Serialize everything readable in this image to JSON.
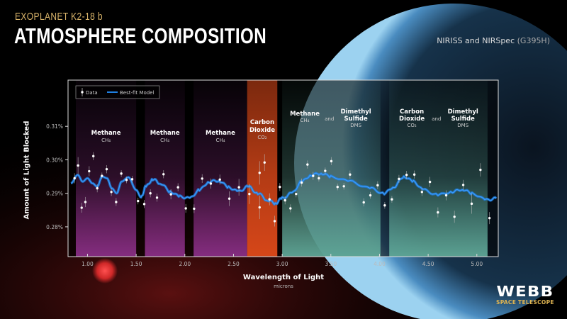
{
  "header": {
    "kicker": "EXOPLANET K2-18 b",
    "title": "ATMOSPHERE COMPOSITION",
    "instrument": "NIRISS and NIRSpec",
    "instrument_mode": "(G395H)"
  },
  "logo": {
    "name": "WEBB",
    "subtitle": "SPACE TELESCOPE"
  },
  "colors": {
    "model": "#1f7fe0",
    "data": "#ffffff",
    "methane_band": "#8a2f86",
    "co2_band": "#e04a1a",
    "dms_band": "#5fa898",
    "title_accent": "#d9b46a"
  },
  "chart_data": {
    "type": "scatter",
    "xlabel": "Wavelength of Light",
    "xunit": "microns",
    "ylabel": "Amount of Light Blocked",
    "xlim": [
      0.8,
      5.22
    ],
    "ylim": [
      0.2711,
      0.3238
    ],
    "xticks": [
      "1.00",
      "1.50",
      "2.00",
      "2.50",
      "3.00",
      "3.50",
      "4.00",
      "4.50",
      "5.00"
    ],
    "xtick_values": [
      1.0,
      1.5,
      2.0,
      2.5,
      3.0,
      3.5,
      4.0,
      4.5,
      5.0
    ],
    "yticks": [
      "0.28%",
      "0.29%",
      "0.30%",
      "0.31%"
    ],
    "ytick_values": [
      0.28,
      0.29,
      0.3,
      0.31
    ],
    "grid": false,
    "legend": {
      "position": "top-left",
      "entries": [
        "Data",
        "Best-fit Model"
      ]
    },
    "bands": [
      {
        "type": "methane",
        "x": [
          0.88,
          1.5
        ],
        "labels": [
          {
            "name": "Methane",
            "formula": "CH₄"
          }
        ]
      },
      {
        "type": "methane",
        "x": [
          1.59,
          2.0
        ],
        "labels": [
          {
            "name": "Methane",
            "formula": "CH₄"
          }
        ]
      },
      {
        "type": "methane",
        "x": [
          2.09,
          2.64
        ],
        "labels": [
          {
            "name": "Methane",
            "formula": "CH₄"
          }
        ]
      },
      {
        "type": "co2",
        "x": [
          2.64,
          2.95
        ],
        "labels": [
          {
            "name": "Carbon Dioxide",
            "formula": "CO₂"
          }
        ]
      },
      {
        "type": "dms",
        "x": [
          3.0,
          4.01
        ],
        "labels": [
          {
            "name": "Methane",
            "formula": "CH₄"
          },
          {
            "name": "Dimethyl Sulfide",
            "formula": "DMS"
          }
        ],
        "joiner": "and"
      },
      {
        "type": "dms",
        "x": [
          4.1,
          5.11
        ],
        "labels": [
          {
            "name": "Carbon Dioxide",
            "formula": "CO₂"
          },
          {
            "name": "Dimethyl Sulfide",
            "formula": "DMS"
          }
        ],
        "joiner": "and"
      }
    ],
    "series": [
      {
        "name": "Data",
        "type": "errorbar",
        "x": [
          0.867,
          0.903,
          0.94,
          0.978,
          1.017,
          1.06,
          1.1,
          1.148,
          1.197,
          1.245,
          1.294,
          1.347,
          1.401,
          1.459,
          1.519,
          1.583,
          1.646,
          1.714,
          1.781,
          1.857,
          1.93,
          2.01,
          2.095,
          2.178,
          2.267,
          2.36,
          2.457,
          2.556,
          2.663,
          2.768,
          2.768,
          2.819,
          2.87,
          2.923,
          2.976,
          3.03,
          3.085,
          3.143,
          3.2,
          3.26,
          3.318,
          3.377,
          3.442,
          3.505,
          3.569,
          3.634,
          3.697,
          3.838,
          3.906,
          3.981,
          4.054,
          4.127,
          4.2,
          4.278,
          4.358,
          4.436,
          4.518,
          4.6,
          4.685,
          4.77,
          4.86,
          4.947,
          5.037,
          5.13
        ],
        "y": [
          0.2945,
          0.2983,
          0.2857,
          0.2874,
          0.2966,
          0.3011,
          0.2915,
          0.2952,
          0.2972,
          0.2904,
          0.2874,
          0.2959,
          0.294,
          0.2942,
          0.2877,
          0.2868,
          0.29,
          0.2887,
          0.2957,
          0.2897,
          0.2918,
          0.2855,
          0.2854,
          0.2944,
          0.2929,
          0.2941,
          0.2884,
          0.2918,
          0.2898,
          0.2961,
          0.2858,
          0.2992,
          0.2882,
          0.2817,
          0.2919,
          0.2879,
          0.2855,
          0.2898,
          0.2932,
          0.2986,
          0.2952,
          0.2945,
          0.2967,
          0.2996,
          0.2919,
          0.2921,
          0.2956,
          0.2873,
          0.2894,
          0.2924,
          0.2864,
          0.2882,
          0.2943,
          0.2955,
          0.2956,
          0.2904,
          0.2934,
          0.2843,
          0.2894,
          0.283,
          0.2925,
          0.2869,
          0.297,
          0.2826
        ],
        "yerr": [
          0.0015,
          0.0025,
          0.0015,
          0.0015,
          0.0015,
          0.0012,
          0.0012,
          0.001,
          0.0012,
          0.0012,
          0.0012,
          0.001,
          0.001,
          0.001,
          0.001,
          0.0012,
          0.0012,
          0.0012,
          0.0012,
          0.0015,
          0.0012,
          0.0013,
          0.0013,
          0.0013,
          0.0015,
          0.0015,
          0.0022,
          0.0025,
          0.003,
          0.0035,
          0.0035,
          0.0025,
          0.0018,
          0.0016,
          0.0012,
          0.0012,
          0.0012,
          0.001,
          0.0012,
          0.0012,
          0.0012,
          0.001,
          0.001,
          0.0012,
          0.001,
          0.001,
          0.0012,
          0.0012,
          0.001,
          0.0012,
          0.001,
          0.001,
          0.0012,
          0.0012,
          0.0012,
          0.0012,
          0.0015,
          0.0015,
          0.0015,
          0.0018,
          0.0015,
          0.003,
          0.002,
          0.0018
        ]
      },
      {
        "name": "Best-fit Model",
        "type": "line",
        "x": [
          0.83,
          0.9,
          0.95,
          1.0,
          1.05,
          1.1,
          1.15,
          1.2,
          1.25,
          1.3,
          1.35,
          1.42,
          1.5,
          1.55,
          1.6,
          1.67,
          1.75,
          1.85,
          1.95,
          2.05,
          2.15,
          2.25,
          2.35,
          2.45,
          2.55,
          2.65,
          2.75,
          2.85,
          2.93,
          3.0,
          3.1,
          3.2,
          3.3,
          3.4,
          3.5,
          3.7,
          3.9,
          4.05,
          4.15,
          4.25,
          4.35,
          4.45,
          4.6,
          4.75,
          4.85,
          4.95,
          5.1,
          5.2
        ],
        "y": [
          0.293,
          0.2955,
          0.2935,
          0.2945,
          0.293,
          0.292,
          0.295,
          0.2945,
          0.2915,
          0.29,
          0.2935,
          0.2948,
          0.291,
          0.2888,
          0.292,
          0.2942,
          0.293,
          0.2905,
          0.289,
          0.2885,
          0.291,
          0.2935,
          0.2938,
          0.2918,
          0.2905,
          0.292,
          0.29,
          0.288,
          0.287,
          0.2885,
          0.29,
          0.2935,
          0.2955,
          0.296,
          0.295,
          0.2935,
          0.2915,
          0.29,
          0.292,
          0.295,
          0.2935,
          0.291,
          0.2895,
          0.2905,
          0.2912,
          0.29,
          0.288,
          0.2885
        ]
      }
    ]
  }
}
